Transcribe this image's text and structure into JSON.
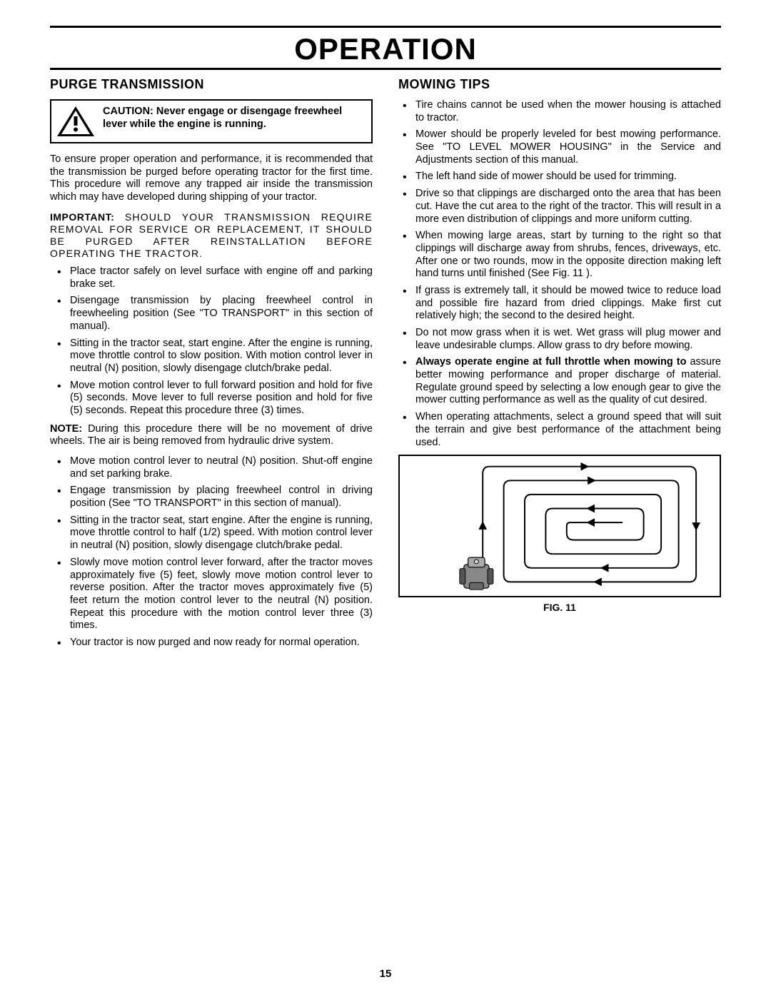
{
  "title": "OPERATION",
  "page_number": "15",
  "left": {
    "heading": "PURGE TRANSMISSION",
    "caution": "CAUTION: Never engage or disengage freewheel lever while the engine is running.",
    "para1": "To ensure proper operation and performance, it is recommended that the transmission be purged before operating tractor for the first time. This procedure will remove any trapped air inside the transmission which may have developed during shipping of your tractor.",
    "important_label": "IMPORTANT:",
    "important_body": "SHOULD YOUR TRANSMISSION REQUIRE REMOVAL FOR SERVICE OR REPLACEMENT, IT SHOULD BE PURGED AFTER REINSTALLATION BEFORE OPERATING THE TRACTOR.",
    "list1": [
      "Place tractor safely on level surface with engine off and parking brake set.",
      "Disengage transmission by placing freewheel control in freewheeling position (See \"TO TRANSPORT\" in this section of manual).",
      "Sitting in the tractor seat, start engine. After the engine is running, move throttle control to slow position. With motion control lever in neutral (N) position, slowly disengage clutch/brake pedal.",
      "Move motion control lever to full forward position and hold for five (5) seconds. Move lever to full reverse position and hold for five (5) seconds. Repeat this procedure three (3) times."
    ],
    "note_label": "NOTE:",
    "note_body": "During this procedure there will be no movement of drive wheels. The air is being removed from hydraulic drive system.",
    "list2": [
      "Move motion control lever to neutral (N) position. Shut-off engine and set parking brake.",
      "Engage transmission by placing freewheel control in driving position (See \"TO TRANSPORT\" in this section of manual).",
      "Sitting in the tractor seat, start engine. After the engine is running, move throttle control to half (1/2) speed. With motion control lever in neutral (N) position, slowly disengage clutch/brake pedal.",
      "Slowly move motion control lever forward, after the tractor moves approximately five (5) feet, slowly move motion control lever to reverse position. After the tractor moves approximately five (5) feet return the motion control lever to the neutral (N) position. Repeat this procedure with the motion control lever three (3) times.",
      "Your tractor is now purged and now ready for normal operation."
    ]
  },
  "right": {
    "heading": "MOWING TIPS",
    "list": [
      {
        "text": "Tire chains cannot be used when the mower housing is attached to tractor."
      },
      {
        "text": "Mower should be properly leveled for best mowing performance. See \"TO LEVEL MOWER HOUSING\" in the Service and Adjustments section of this manual."
      },
      {
        "text": "The left hand side of mower should be used for trimming."
      },
      {
        "text": "Drive so that clippings are discharged onto the area that has been cut. Have the cut area to the right of the tractor. This will result in a more even distribution of clippings and more uniform cutting."
      },
      {
        "text": "When mowing large areas, start by turning to the right so that clippings will discharge away from shrubs, fences, driveways, etc. After one or two rounds, mow in the opposite direction making left hand turns until finished (See Fig. 11 )."
      },
      {
        "text": "If grass is extremely tall, it should be mowed twice to reduce load and possible fire hazard from dried clippings. Make first cut relatively high; the second to the desired height."
      },
      {
        "text": "Do not mow grass when it is wet. Wet grass will plug mower and leave undesirable clumps. Allow grass to dry before mowing."
      },
      {
        "bold": "Always operate engine at full throttle when mowing to",
        "text": " assure better mowing performance and proper discharge of material. Regulate ground speed by selecting a low enough gear to give the mower cutting performance as well as the quality of cut desired."
      },
      {
        "text": "When operating attachments, select a ground speed that will suit the terrain and give best performance of the attachment being used."
      }
    ],
    "figure_caption": "FIG. 11"
  }
}
